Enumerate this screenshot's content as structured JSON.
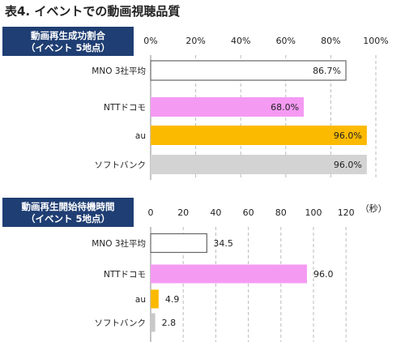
{
  "title": "表4. イベントでの動画視聴品質",
  "colors": {
    "header_bg": "#1f3e73",
    "axis": "#888888",
    "grid": "#bbbbbb",
    "bar_border": "#666666"
  },
  "chart_data": [
    {
      "type": "bar",
      "orientation": "horizontal",
      "header_line1": "動画再生成功割合",
      "header_line2": "（イベント 5地点）",
      "unit": "",
      "categories": [
        "MNO 3社平均",
        "NTTドコモ",
        "au",
        "ソフトバンク"
      ],
      "values": [
        86.7,
        68.0,
        96.0,
        96.0
      ],
      "value_labels": [
        "86.7%",
        "68.0%",
        "96.0%",
        "96.0%"
      ],
      "colors": [
        "#ffffff",
        "#f59af3",
        "#fbb900",
        "#d3d3d3"
      ],
      "xlim": [
        0,
        100
      ],
      "ticks": [
        0,
        20,
        40,
        60,
        80,
        100
      ],
      "tick_labels": [
        "0%",
        "20%",
        "40%",
        "60%",
        "80%",
        "100%"
      ],
      "grid": true
    },
    {
      "type": "bar",
      "orientation": "horizontal",
      "header_line1": "動画再生開始待機時間",
      "header_line2": "（イベント 5地点）",
      "unit": "（秒）",
      "categories": [
        "MNO 3社平均",
        "NTTドコモ",
        "au",
        "ソフトバンク"
      ],
      "values": [
        34.5,
        96.0,
        4.9,
        2.8
      ],
      "value_labels": [
        "34.5",
        "96.0",
        "4.9",
        "2.8"
      ],
      "colors": [
        "#ffffff",
        "#f59af3",
        "#fbb900",
        "#c8c8c8"
      ],
      "xlim": [
        0,
        135
      ],
      "ticks": [
        0,
        20,
        40,
        60,
        80,
        100,
        120
      ],
      "tick_labels": [
        "0",
        "20",
        "40",
        "60",
        "80",
        "100",
        "120"
      ],
      "grid": true
    }
  ]
}
